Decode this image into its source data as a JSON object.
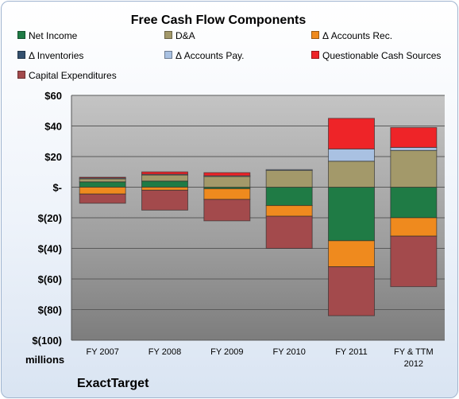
{
  "chart_data": {
    "type": "bar",
    "stacked": true,
    "title": "Free Cash Flow Components",
    "categories": [
      "FY 2007",
      "FY 2008",
      "FY 2009",
      "FY 2010",
      "FY 2011",
      "FY & TTM 2012"
    ],
    "ylim": [
      -100,
      60
    ],
    "yticks": [
      60,
      40,
      20,
      0,
      -20,
      -40,
      -60,
      -80,
      -100
    ],
    "ytick_labels": [
      "$60",
      "$40",
      "$20",
      "$-",
      "$(20)",
      "$(40)",
      "$(60)",
      "$(80)",
      "$(100)"
    ],
    "ylabel": "millions",
    "grid": true,
    "legend_position": "top",
    "series": [
      {
        "name": "Net Income",
        "color": "#1f7b45",
        "values": [
          3.5,
          4,
          -1,
          -12,
          -35,
          -20
        ]
      },
      {
        "name": "D&A",
        "color": "#a3996a",
        "values": [
          2,
          4,
          7,
          11,
          17,
          24
        ]
      },
      {
        "name": "Δ Accounts Rec.",
        "color": "#ef8a1e",
        "values": [
          -4.5,
          -2,
          -7,
          -7,
          -17,
          -12
        ]
      },
      {
        "name": "Δ Inventories",
        "color": "#34506e",
        "values": [
          0,
          0,
          0,
          0,
          0,
          0
        ]
      },
      {
        "name": "Δ Accounts Pay.",
        "color": "#a9c1e2",
        "values": [
          0.5,
          0.5,
          0.5,
          0.5,
          8,
          2
        ]
      },
      {
        "name": "Questionable Cash Sources",
        "color": "#ee2428",
        "values": [
          0.5,
          1.5,
          2,
          0,
          20,
          13
        ]
      },
      {
        "name": "Capital Expenditures",
        "color": "#a34a4c",
        "values": [
          -6,
          -13,
          -14,
          -21,
          -32,
          -33
        ]
      }
    ]
  },
  "company": "ExactTarget"
}
